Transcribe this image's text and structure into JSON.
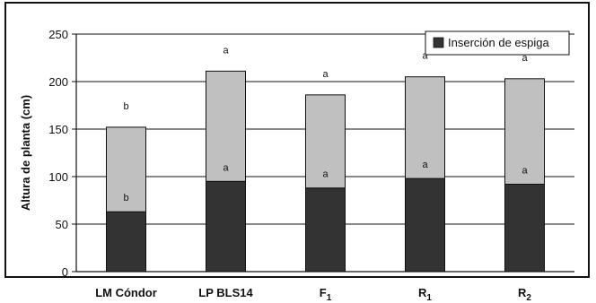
{
  "chart_data": {
    "type": "bar",
    "stacked": true,
    "categories": [
      "LM Cóndor",
      "LP BLS14",
      "F1",
      "R1",
      "R2"
    ],
    "category_labels": [
      {
        "main": "LM Cóndor",
        "sub": ""
      },
      {
        "main": "LP BLS14",
        "sub": ""
      },
      {
        "main": "F",
        "sub": "1"
      },
      {
        "main": "R",
        "sub": "1"
      },
      {
        "main": "R",
        "sub": "2"
      }
    ],
    "series": [
      {
        "name": "Inserción de espiga",
        "values": [
          63,
          95,
          88,
          98,
          92
        ],
        "color": "#333333"
      },
      {
        "values": [
          89,
          116,
          98,
          107,
          111
        ],
        "color": "#c0c0c0"
      }
    ],
    "totals": [
      152,
      211,
      186,
      205,
      203
    ],
    "inner_labels": [
      "b",
      "a",
      "a",
      "a",
      "a"
    ],
    "top_labels": [
      "b",
      "a",
      "a",
      "a",
      "a"
    ],
    "ylabel": "Altura de planta (cm)",
    "ylim": [
      0,
      250
    ],
    "yticks": [
      0,
      50,
      100,
      150,
      200,
      250
    ],
    "grid": true,
    "legend_position": "top-right",
    "legend_label": "Inserción de espiga"
  }
}
